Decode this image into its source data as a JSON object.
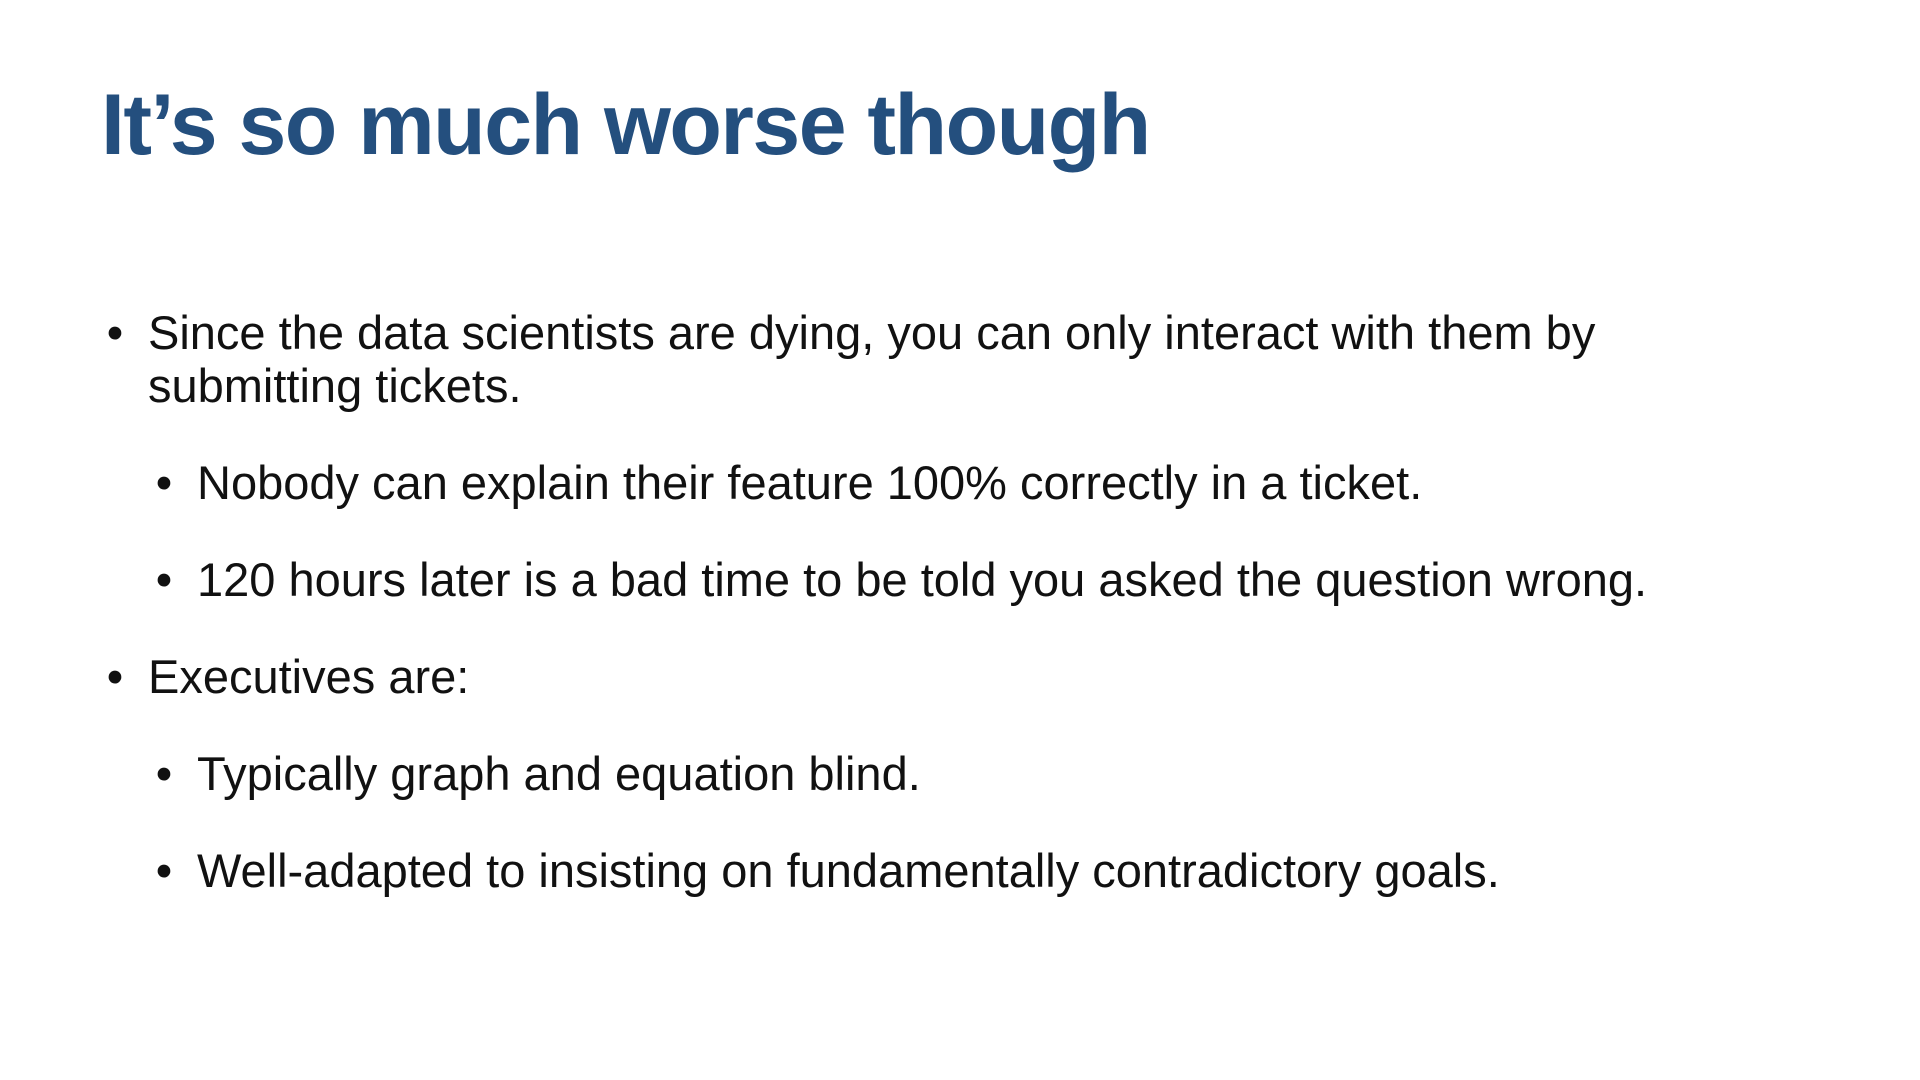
{
  "slide": {
    "title": "It’s so much worse though",
    "bullets": [
      {
        "marker": "•",
        "text": "Since the data scientists are dying, you can only interact with them by submitting tickets."
      },
      {
        "marker": "•",
        "text": "Nobody can explain their feature 100% correctly in a ticket."
      },
      {
        "marker": "•",
        "text": "120 hours later is a bad time to be told you asked the question wrong."
      },
      {
        "marker": "•",
        "text": "Executives are:"
      },
      {
        "marker": "•",
        "text": "Typically graph and equation blind."
      },
      {
        "marker": "•",
        "text": "Well-adapted to insisting on fundamentally contradictory goals."
      }
    ]
  },
  "colors": {
    "title": "#244f7e",
    "body_text": "#111111",
    "background": "#ffffff"
  }
}
